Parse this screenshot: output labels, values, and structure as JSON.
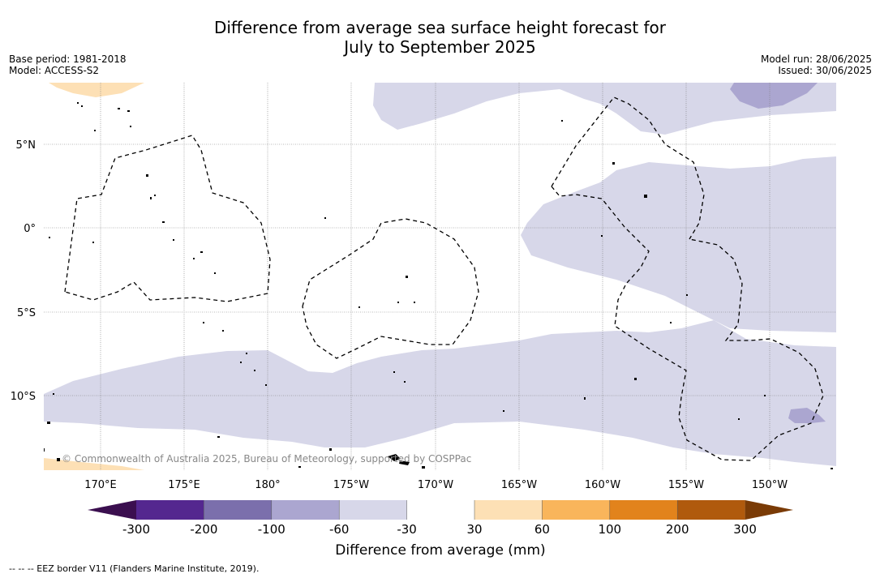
{
  "title": {
    "line1": "Difference from average sea surface height forecast for",
    "line2": "July to September 2025"
  },
  "info_left": {
    "base_period": "Base period: 1981-2018",
    "model": "Model: ACCESS-S2"
  },
  "info_right": {
    "model_run": "Model run: 28/06/2025",
    "issued": "Issued: 30/06/2025"
  },
  "map": {
    "lat_labels": [
      "5°N",
      "0°",
      "5°S",
      "10°S"
    ],
    "lon_labels": [
      "170°E",
      "175°E",
      "180°",
      "175°W",
      "170°W",
      "165°W",
      "160°W",
      "155°W",
      "150°W"
    ],
    "copyright": "© Commonwealth of Australia 2025, Bureau of Meteorology, supported by COSPPac"
  },
  "colorbar": {
    "ticks": [
      "-300",
      "-200",
      "-100",
      "-60",
      "-30",
      "30",
      "60",
      "100",
      "200",
      "300"
    ],
    "colors": [
      "#3b0f4f",
      "#54278f",
      "#7b6fac",
      "#aba6d0",
      "#d7d7e9",
      "#ffffff",
      "#fde0b5",
      "#f9b55b",
      "#e2831c",
      "#b05a0d",
      "#7a3b06"
    ],
    "label": "Difference from average (mm)"
  },
  "footnote": "-- -- -- EEZ border V11 (Flanders Marine Institute, 2019)."
}
